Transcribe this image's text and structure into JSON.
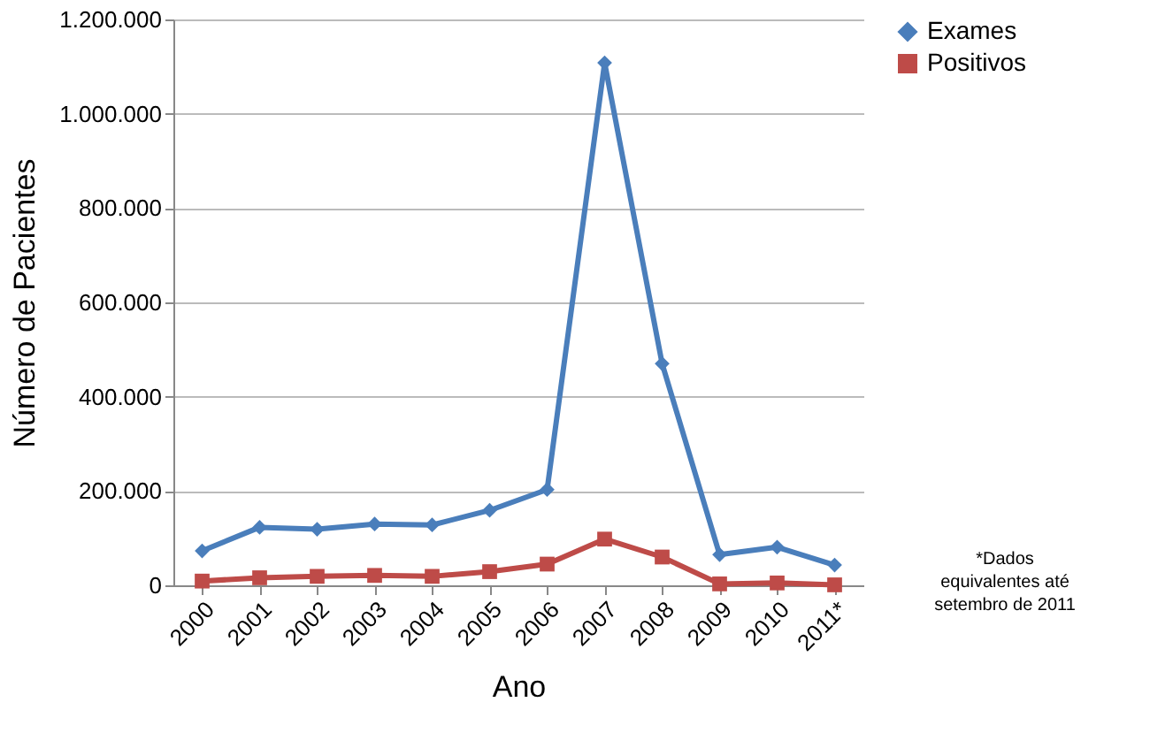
{
  "chart_data": {
    "type": "line",
    "xlabel": "Ano",
    "ylabel": "Número de Pacientes",
    "categories": [
      "2000",
      "2001",
      "2002",
      "2003",
      "2004",
      "2005",
      "2006",
      "2007",
      "2008",
      "2009",
      "2010",
      "2011*"
    ],
    "series": [
      {
        "name": "Exames",
        "color": "#4a7ebb",
        "marker": "diamond",
        "values": [
          73000,
          123000,
          119000,
          130000,
          128000,
          159000,
          203000,
          1108000,
          470000,
          65000,
          81000,
          43000
        ]
      },
      {
        "name": "Positivos",
        "color": "#be4b48",
        "marker": "square",
        "values": [
          9000,
          16000,
          19000,
          21000,
          19000,
          29000,
          45000,
          98000,
          60000,
          3000,
          5000,
          1000
        ]
      }
    ],
    "ylim": [
      0,
      1200000
    ],
    "yticks": [
      {
        "value": 0,
        "label": "0"
      },
      {
        "value": 200000,
        "label": "200.000"
      },
      {
        "value": 400000,
        "label": "400.000"
      },
      {
        "value": 600000,
        "label": "600.000"
      },
      {
        "value": 800000,
        "label": "800.000"
      },
      {
        "value": 1000000,
        "label": "1.000.000"
      },
      {
        "value": 1200000,
        "label": "1.200.000"
      }
    ],
    "grid": "y",
    "legend": "right",
    "line_style": "solid",
    "annotations": [
      "*Dados\nequivalentes até\nsetembro de 2011"
    ]
  }
}
